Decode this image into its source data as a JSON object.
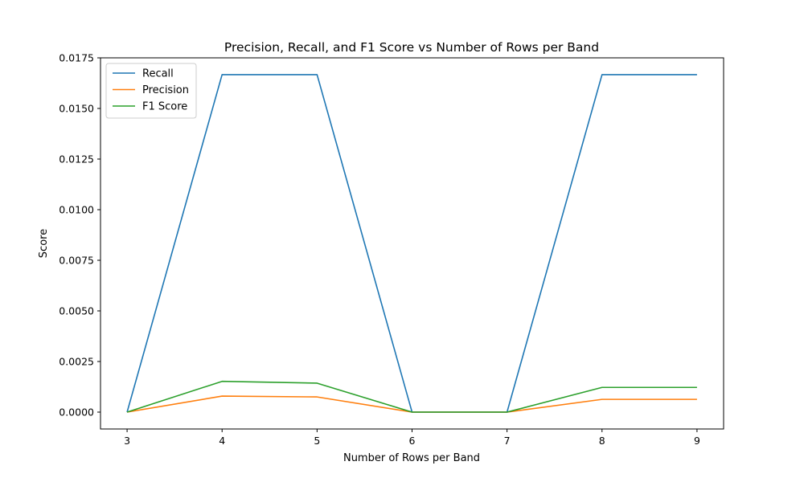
{
  "chart_data": {
    "type": "line",
    "title": "Precision, Recall, and F1 Score vs Number of Rows per Band",
    "xlabel": "Number of Rows per Band",
    "ylabel": "Score",
    "x": [
      3,
      4,
      5,
      6,
      7,
      8,
      9
    ],
    "xlim": [
      2.72,
      9.28
    ],
    "ylim": [
      -0.000833,
      0.0175
    ],
    "x_ticks": [
      "3",
      "4",
      "5",
      "6",
      "7",
      "8",
      "9"
    ],
    "y_ticks": [
      "0.0000",
      "0.0025",
      "0.0050",
      "0.0075",
      "0.0100",
      "0.0125",
      "0.0150",
      "0.0175"
    ],
    "grid": false,
    "legend_position": "top-left",
    "series": [
      {
        "name": "Recall",
        "color": "#1f77b4",
        "values": [
          0.0,
          0.01667,
          0.01667,
          0.0,
          0.0,
          0.01667,
          0.01667
        ]
      },
      {
        "name": "Precision",
        "color": "#ff7f0e",
        "values": [
          0.0,
          0.00079,
          0.00075,
          0.0,
          0.0,
          0.00063,
          0.00063
        ]
      },
      {
        "name": "F1 Score",
        "color": "#2ca02c",
        "values": [
          0.0,
          0.00152,
          0.00143,
          0.0,
          0.0,
          0.00122,
          0.00122
        ]
      }
    ]
  }
}
